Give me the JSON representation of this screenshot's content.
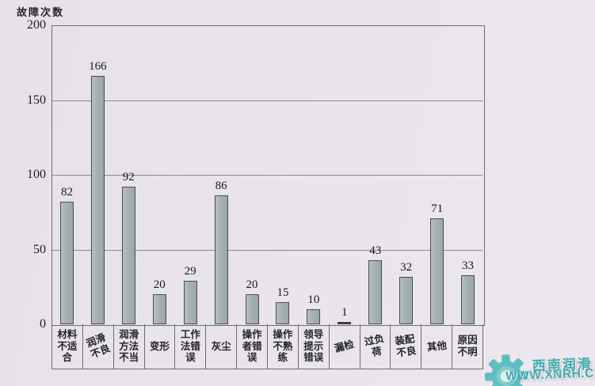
{
  "chart_data": {
    "type": "bar",
    "title": "",
    "ylabel": "故障次数",
    "xlabel": "",
    "ylim": [
      0,
      200
    ],
    "yticks": [
      0,
      50,
      100,
      150,
      200
    ],
    "grid": true,
    "legend": null,
    "categories": [
      "材料不适合",
      "润滑不良",
      "润滑方法不当",
      "变形",
      "工作法错误",
      "灰尘",
      "操作者错误",
      "操作不熟练",
      "领导提示错误",
      "漏检",
      "过负荷",
      "装配不良",
      "其他",
      "原因不明"
    ],
    "values": [
      82,
      166,
      92,
      20,
      29,
      86,
      20,
      15,
      10,
      1,
      43,
      32,
      71,
      33
    ]
  },
  "watermark": {
    "icon": "gear-icon",
    "brand": "西南润滑",
    "url": "WWW.XNRH.CN",
    "color": "#3fa9ae"
  },
  "colors": {
    "paper": "#eae4eb",
    "bar_fill": "#a5b1b0",
    "bar_border": "#4c4c4a",
    "grid_line": "#8a8a88",
    "frame_line": "#6e6e6c",
    "ink": "#1f1f26"
  }
}
